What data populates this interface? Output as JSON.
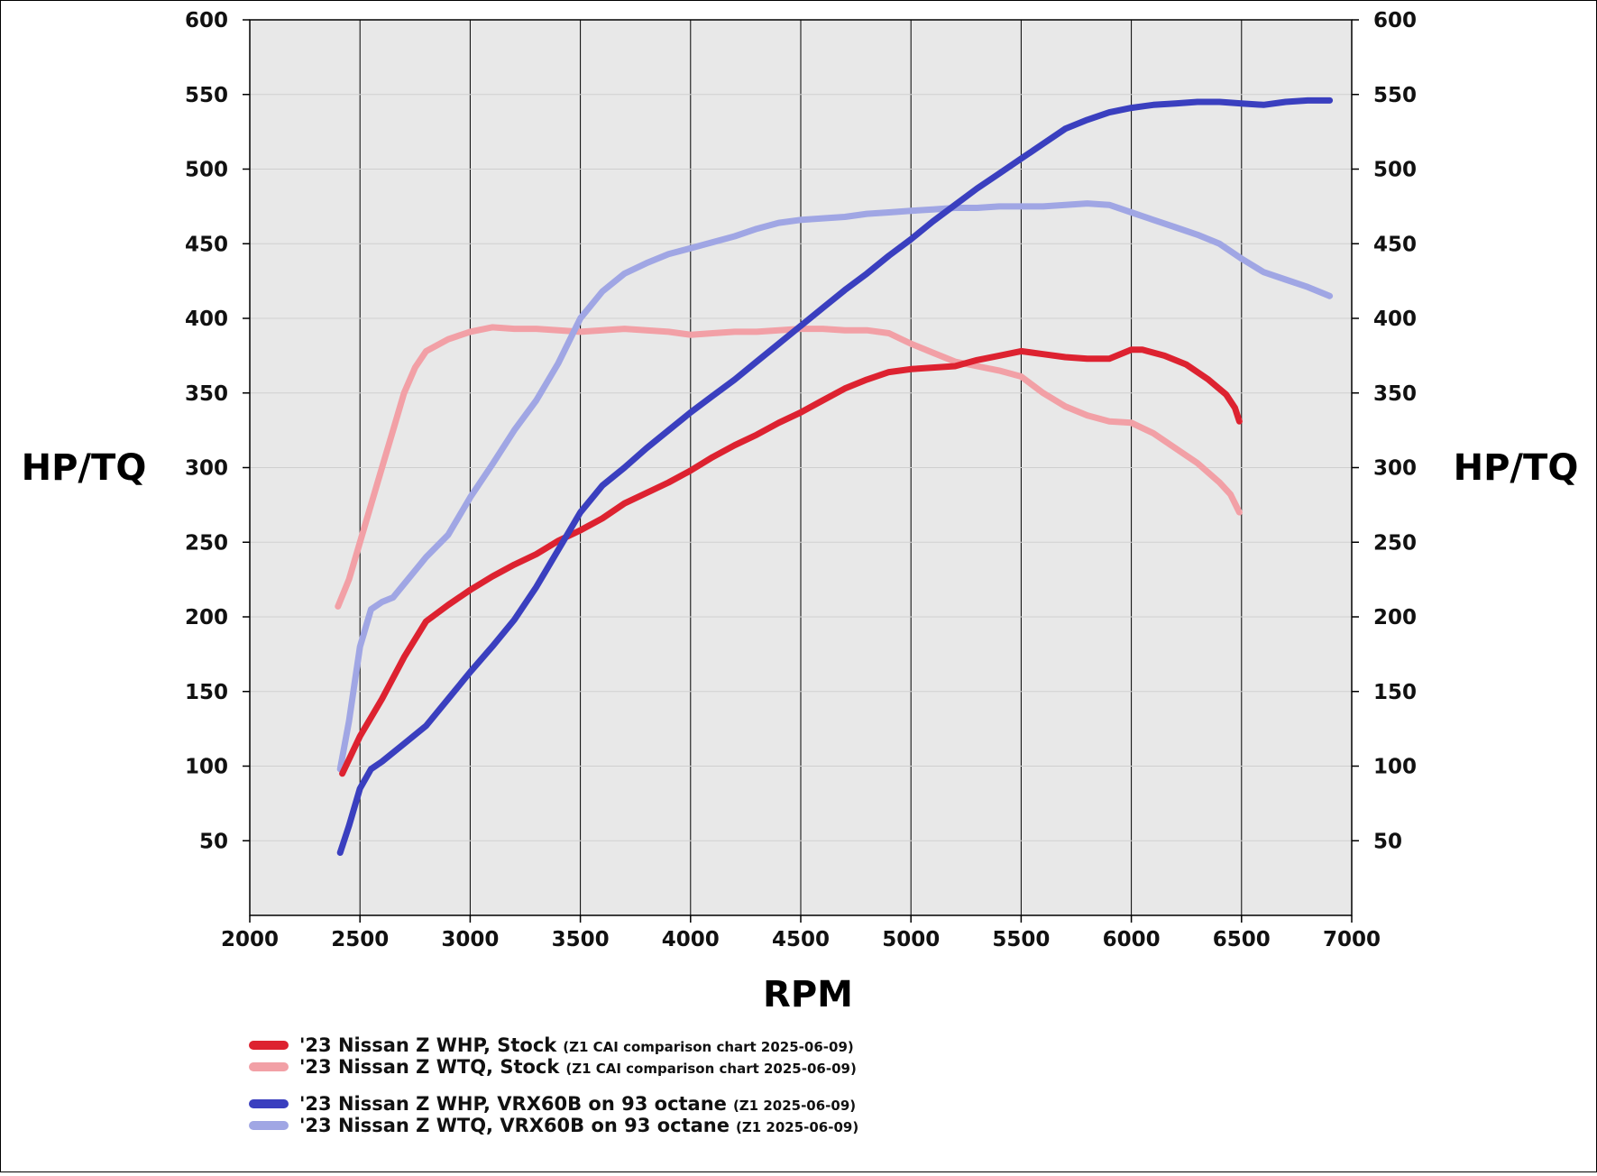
{
  "chart_data": {
    "type": "line",
    "xlabel": "RPM",
    "ylabel_left": "HP/TQ",
    "ylabel_right": "HP/TQ",
    "xlim": [
      2000,
      7000
    ],
    "ylim": [
      0,
      600
    ],
    "x_ticks": [
      "2000",
      "2500",
      "3000",
      "3500",
      "4000",
      "4500",
      "5000",
      "5500",
      "6000",
      "6500",
      "7000"
    ],
    "y_ticks": [
      "50",
      "100",
      "150",
      "200",
      "250",
      "300",
      "350",
      "400",
      "450",
      "500",
      "550",
      "600"
    ],
    "grid": true,
    "legend_position": "bottom-left",
    "series": [
      {
        "name": "'23 Nissan Z WHP, Stock",
        "note": "(Z1 CAI comparison chart 2025-06-09)",
        "color": "#dd2230",
        "points": [
          [
            2420,
            95
          ],
          [
            2500,
            120
          ],
          [
            2600,
            145
          ],
          [
            2700,
            173
          ],
          [
            2800,
            197
          ],
          [
            2900,
            208
          ],
          [
            3000,
            218
          ],
          [
            3100,
            227
          ],
          [
            3200,
            235
          ],
          [
            3300,
            242
          ],
          [
            3400,
            251
          ],
          [
            3500,
            258
          ],
          [
            3600,
            266
          ],
          [
            3700,
            276
          ],
          [
            3800,
            283
          ],
          [
            3900,
            290
          ],
          [
            4000,
            298
          ],
          [
            4100,
            307
          ],
          [
            4200,
            315
          ],
          [
            4300,
            322
          ],
          [
            4400,
            330
          ],
          [
            4500,
            337
          ],
          [
            4600,
            345
          ],
          [
            4700,
            353
          ],
          [
            4800,
            359
          ],
          [
            4900,
            364
          ],
          [
            5000,
            366
          ],
          [
            5100,
            367
          ],
          [
            5200,
            368
          ],
          [
            5300,
            372
          ],
          [
            5400,
            375
          ],
          [
            5500,
            378
          ],
          [
            5600,
            376
          ],
          [
            5700,
            374
          ],
          [
            5800,
            373
          ],
          [
            5900,
            373
          ],
          [
            6000,
            379
          ],
          [
            6050,
            379
          ],
          [
            6150,
            375
          ],
          [
            6250,
            369
          ],
          [
            6350,
            359
          ],
          [
            6430,
            349
          ],
          [
            6470,
            340
          ],
          [
            6490,
            331
          ]
        ]
      },
      {
        "name": "'23 Nissan Z WTQ, Stock",
        "note": "(Z1 CAI comparison chart 2025-06-09)",
        "color": "#f2a0a6",
        "points": [
          [
            2400,
            207
          ],
          [
            2450,
            225
          ],
          [
            2500,
            250
          ],
          [
            2550,
            275
          ],
          [
            2600,
            300
          ],
          [
            2650,
            325
          ],
          [
            2700,
            350
          ],
          [
            2750,
            367
          ],
          [
            2800,
            378
          ],
          [
            2900,
            386
          ],
          [
            3000,
            391
          ],
          [
            3100,
            394
          ],
          [
            3200,
            393
          ],
          [
            3300,
            393
          ],
          [
            3400,
            392
          ],
          [
            3500,
            391
          ],
          [
            3600,
            392
          ],
          [
            3700,
            393
          ],
          [
            3800,
            392
          ],
          [
            3900,
            391
          ],
          [
            4000,
            389
          ],
          [
            4100,
            390
          ],
          [
            4200,
            391
          ],
          [
            4300,
            391
          ],
          [
            4400,
            392
          ],
          [
            4500,
            393
          ],
          [
            4600,
            393
          ],
          [
            4700,
            392
          ],
          [
            4800,
            392
          ],
          [
            4900,
            390
          ],
          [
            5000,
            383
          ],
          [
            5100,
            377
          ],
          [
            5200,
            371
          ],
          [
            5300,
            368
          ],
          [
            5400,
            365
          ],
          [
            5500,
            361
          ],
          [
            5600,
            350
          ],
          [
            5700,
            341
          ],
          [
            5800,
            335
          ],
          [
            5900,
            331
          ],
          [
            6000,
            330
          ],
          [
            6100,
            323
          ],
          [
            6200,
            313
          ],
          [
            6300,
            303
          ],
          [
            6400,
            290
          ],
          [
            6450,
            282
          ],
          [
            6490,
            270
          ]
        ]
      },
      {
        "name": "'23 Nissan Z WHP, VRX60B on 93 octane",
        "note": "(Z1 2025-06-09)",
        "color": "#3a3fbf",
        "points": [
          [
            2410,
            42
          ],
          [
            2450,
            60
          ],
          [
            2500,
            85
          ],
          [
            2550,
            98
          ],
          [
            2600,
            103
          ],
          [
            2700,
            115
          ],
          [
            2800,
            127
          ],
          [
            2900,
            145
          ],
          [
            3000,
            163
          ],
          [
            3100,
            180
          ],
          [
            3200,
            198
          ],
          [
            3300,
            220
          ],
          [
            3400,
            245
          ],
          [
            3500,
            270
          ],
          [
            3600,
            288
          ],
          [
            3700,
            300
          ],
          [
            3800,
            313
          ],
          [
            3900,
            325
          ],
          [
            4000,
            337
          ],
          [
            4100,
            348
          ],
          [
            4200,
            359
          ],
          [
            4300,
            371
          ],
          [
            4400,
            383
          ],
          [
            4500,
            395
          ],
          [
            4600,
            407
          ],
          [
            4700,
            419
          ],
          [
            4800,
            430
          ],
          [
            4900,
            442
          ],
          [
            5000,
            453
          ],
          [
            5100,
            465
          ],
          [
            5200,
            476
          ],
          [
            5300,
            487
          ],
          [
            5400,
            497
          ],
          [
            5500,
            507
          ],
          [
            5600,
            517
          ],
          [
            5700,
            527
          ],
          [
            5800,
            533
          ],
          [
            5900,
            538
          ],
          [
            6000,
            541
          ],
          [
            6100,
            543
          ],
          [
            6200,
            544
          ],
          [
            6300,
            545
          ],
          [
            6400,
            545
          ],
          [
            6500,
            544
          ],
          [
            6600,
            543
          ],
          [
            6700,
            545
          ],
          [
            6800,
            546
          ],
          [
            6900,
            546
          ]
        ]
      },
      {
        "name": "'23 Nissan Z WTQ, VRX60B on 93 octane",
        "note": "(Z1 2025-06-09)",
        "color": "#a0a6e4",
        "points": [
          [
            2410,
            98
          ],
          [
            2450,
            130
          ],
          [
            2500,
            180
          ],
          [
            2550,
            205
          ],
          [
            2600,
            210
          ],
          [
            2650,
            213
          ],
          [
            2700,
            222
          ],
          [
            2800,
            240
          ],
          [
            2900,
            255
          ],
          [
            3000,
            280
          ],
          [
            3100,
            302
          ],
          [
            3200,
            325
          ],
          [
            3300,
            345
          ],
          [
            3400,
            370
          ],
          [
            3500,
            400
          ],
          [
            3600,
            418
          ],
          [
            3700,
            430
          ],
          [
            3800,
            437
          ],
          [
            3900,
            443
          ],
          [
            4000,
            447
          ],
          [
            4100,
            451
          ],
          [
            4200,
            455
          ],
          [
            4300,
            460
          ],
          [
            4400,
            464
          ],
          [
            4500,
            466
          ],
          [
            4600,
            467
          ],
          [
            4700,
            468
          ],
          [
            4800,
            470
          ],
          [
            4900,
            471
          ],
          [
            5000,
            472
          ],
          [
            5100,
            473
          ],
          [
            5200,
            474
          ],
          [
            5300,
            474
          ],
          [
            5400,
            475
          ],
          [
            5500,
            475
          ],
          [
            5600,
            475
          ],
          [
            5700,
            476
          ],
          [
            5800,
            477
          ],
          [
            5900,
            476
          ],
          [
            6000,
            471
          ],
          [
            6100,
            466
          ],
          [
            6200,
            461
          ],
          [
            6300,
            456
          ],
          [
            6400,
            450
          ],
          [
            6500,
            440
          ],
          [
            6600,
            431
          ],
          [
            6700,
            426
          ],
          [
            6800,
            421
          ],
          [
            6900,
            415
          ]
        ]
      }
    ]
  }
}
